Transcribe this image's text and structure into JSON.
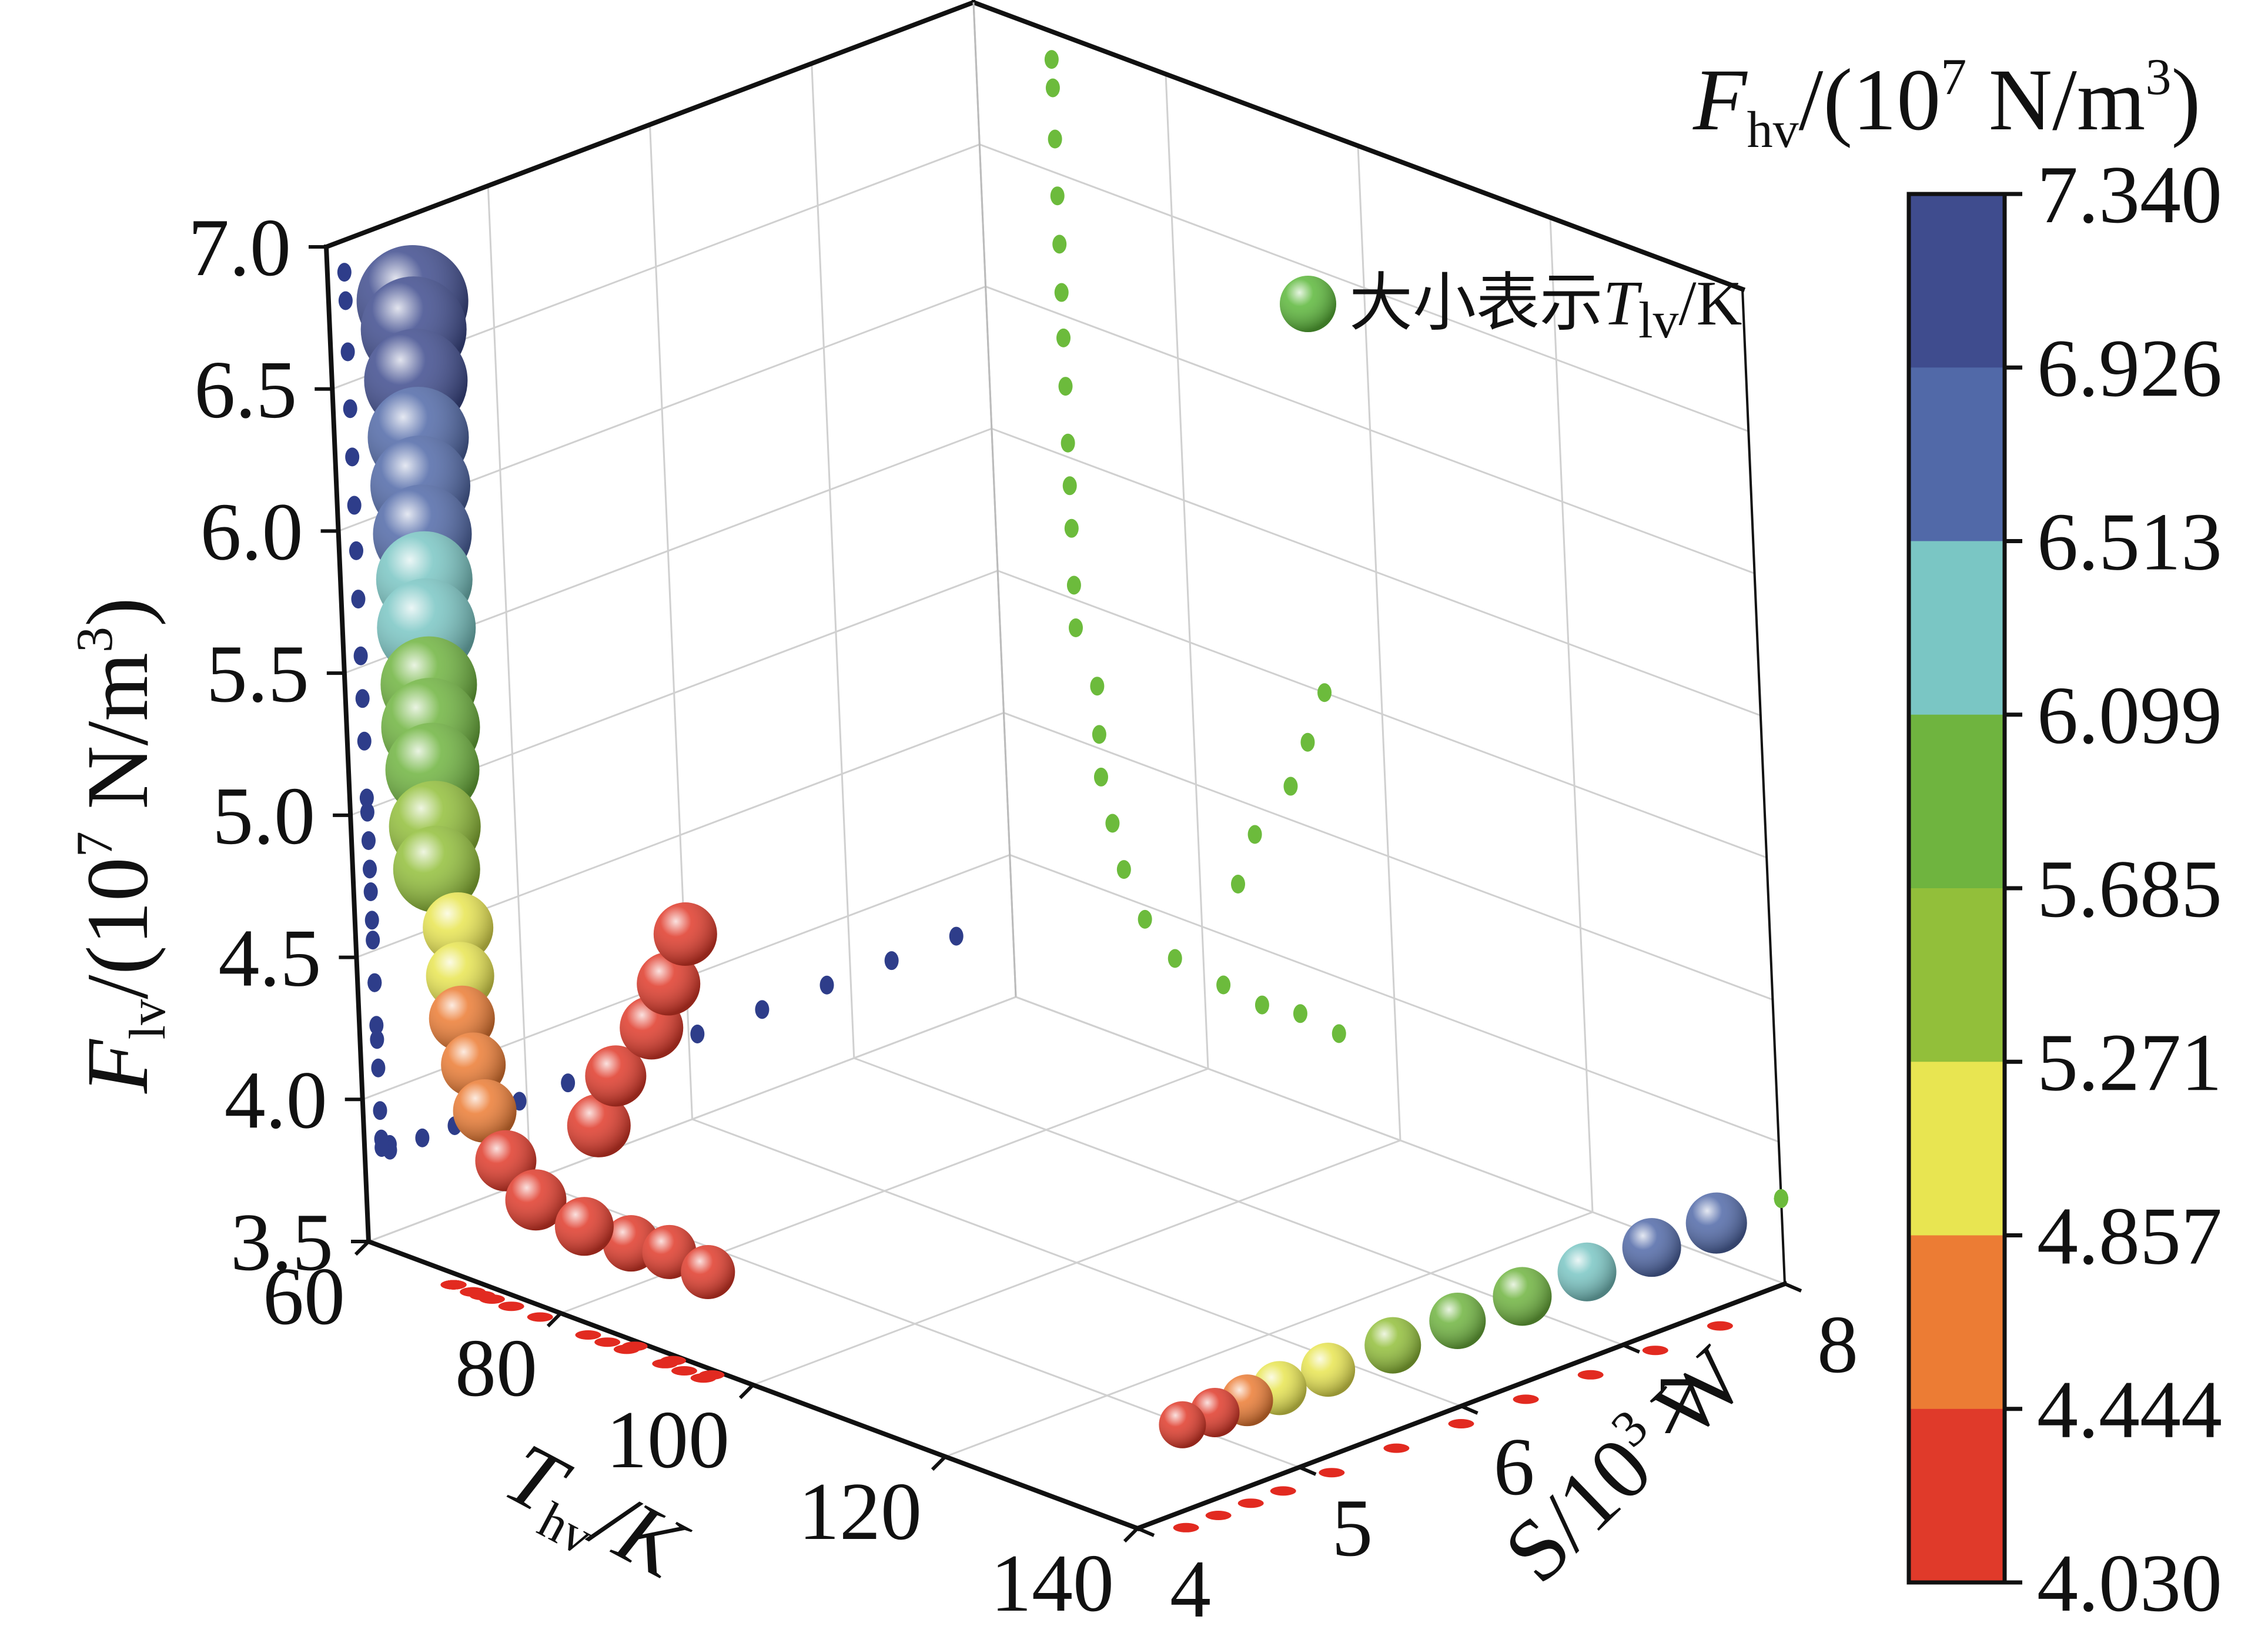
{
  "chart_data": {
    "type": "scatter",
    "dims": "3d",
    "axes": {
      "x": {
        "title_main": "T",
        "title_sub": "hv",
        "title_rest": "/K",
        "range": [
          60,
          140
        ],
        "ticks": [
          "60",
          "80",
          "100",
          "120",
          "140"
        ]
      },
      "y": {
        "title_main": "S/10",
        "title_sup": "3",
        "title_rest": " W",
        "range": [
          4,
          8
        ],
        "ticks": [
          "4",
          "5",
          "6",
          "7",
          "8"
        ]
      },
      "z": {
        "title_main": "F",
        "title_sub": "lv",
        "title_mid": "/(10",
        "title_sup": "7",
        "title_mid2": " N/m",
        "title_sup2": "3",
        "title_rest": ")",
        "range": [
          3.5,
          7.0
        ],
        "ticks": [
          "3.5",
          "4.0",
          "4.5",
          "5.0",
          "5.5",
          "6.0",
          "6.5",
          "7.0"
        ]
      }
    },
    "grid": true,
    "legend": {
      "position": "top-right",
      "text_main": "大小表示",
      "text_T": "T",
      "text_sub": "lv",
      "text_rest": "/K",
      "marker_color": "#5cb83a"
    },
    "colorbar": {
      "title_main": "F",
      "title_sub": "hv",
      "title_mid": "/(10",
      "title_sup": "7",
      "title_mid2": " N/m",
      "title_sup2": "3",
      "title_rest": ")",
      "ticks": [
        "7.340",
        "6.926",
        "6.513",
        "6.099",
        "5.685",
        "5.271",
        "4.857",
        "4.444",
        "4.030"
      ],
      "bands": [
        "#3f4c8e",
        "#5169a8",
        "#7ac6c4",
        "#6fb43f",
        "#92bf3a",
        "#e8e551",
        "#ec7c34",
        "#e03a2a"
      ]
    },
    "series": [
      {
        "role": "points",
        "points": [
          {
            "x": 68,
            "y": 4.05,
            "z": 6.9,
            "c": 7.3,
            "r": 95
          },
          {
            "x": 68,
            "y": 4.05,
            "z": 6.8,
            "c": 7.2,
            "r": 90
          },
          {
            "x": 68,
            "y": 4.05,
            "z": 6.62,
            "c": 7.1,
            "r": 88
          },
          {
            "x": 68,
            "y": 4.05,
            "z": 6.42,
            "c": 6.8,
            "r": 86
          },
          {
            "x": 68,
            "y": 4.05,
            "z": 6.25,
            "c": 6.7,
            "r": 85
          },
          {
            "x": 68,
            "y": 4.05,
            "z": 6.08,
            "c": 6.6,
            "r": 84
          },
          {
            "x": 68,
            "y": 4.05,
            "z": 5.92,
            "c": 6.3,
            "r": 82
          },
          {
            "x": 68,
            "y": 4.05,
            "z": 5.75,
            "c": 6.2,
            "r": 84
          },
          {
            "x": 68,
            "y": 4.05,
            "z": 5.55,
            "c": 5.95,
            "r": 82
          },
          {
            "x": 68,
            "y": 4.05,
            "z": 5.4,
            "c": 5.9,
            "r": 84
          },
          {
            "x": 68,
            "y": 4.05,
            "z": 5.25,
            "c": 5.8,
            "r": 80
          },
          {
            "x": 68,
            "y": 4.05,
            "z": 5.05,
            "c": 5.6,
            "r": 78
          },
          {
            "x": 68,
            "y": 4.05,
            "z": 4.9,
            "c": 5.4,
            "r": 74
          },
          {
            "x": 70,
            "y": 4.05,
            "z": 4.72,
            "c": 5.0,
            "r": 60
          },
          {
            "x": 70,
            "y": 4.05,
            "z": 4.55,
            "c": 4.9,
            "r": 58
          },
          {
            "x": 70,
            "y": 4.05,
            "z": 4.4,
            "c": 4.8,
            "r": 56
          },
          {
            "x": 71,
            "y": 4.05,
            "z": 4.25,
            "c": 4.6,
            "r": 55
          },
          {
            "x": 72,
            "y": 4.05,
            "z": 4.1,
            "c": 4.5,
            "r": 54
          },
          {
            "x": 74,
            "y": 4.05,
            "z": 3.95,
            "c": 4.35,
            "r": 52
          },
          {
            "x": 77,
            "y": 4.05,
            "z": 3.85,
            "c": 4.2,
            "r": 52
          },
          {
            "x": 82,
            "y": 4.05,
            "z": 3.82,
            "c": 4.1,
            "r": 50
          },
          {
            "x": 86,
            "y": 4.1,
            "z": 3.8,
            "c": 4.05,
            "r": 48
          },
          {
            "x": 90,
            "y": 4.1,
            "z": 3.82,
            "c": 4.05,
            "r": 46
          },
          {
            "x": 94,
            "y": 4.1,
            "z": 3.8,
            "c": 4.05,
            "r": 46
          },
          {
            "x": 84,
            "y": 4.05,
            "z": 4.2,
            "c": 4.1,
            "r": 54
          },
          {
            "x": 86,
            "y": 4.05,
            "z": 4.4,
            "c": 4.1,
            "r": 52
          },
          {
            "x": 90,
            "y": 4.05,
            "z": 4.62,
            "c": 4.1,
            "r": 54
          },
          {
            "x": 92,
            "y": 4.05,
            "z": 4.8,
            "c": 4.1,
            "r": 54
          },
          {
            "x": 94,
            "y": 4.05,
            "z": 5.0,
            "c": 4.1,
            "r": 54
          },
          {
            "x": 140,
            "y": 4.3,
            "z": 3.8,
            "c": 4.1,
            "r": 40
          },
          {
            "x": 140,
            "y": 4.5,
            "z": 3.8,
            "c": 4.3,
            "r": 42
          },
          {
            "x": 140,
            "y": 4.7,
            "z": 3.8,
            "c": 4.6,
            "r": 44
          },
          {
            "x": 140,
            "y": 4.9,
            "z": 3.8,
            "c": 4.9,
            "r": 46
          },
          {
            "x": 140,
            "y": 5.2,
            "z": 3.8,
            "c": 5.1,
            "r": 46
          },
          {
            "x": 140,
            "y": 5.6,
            "z": 3.8,
            "c": 5.6,
            "r": 48
          },
          {
            "x": 140,
            "y": 6.0,
            "z": 3.8,
            "c": 5.7,
            "r": 48
          },
          {
            "x": 140,
            "y": 6.4,
            "z": 3.8,
            "c": 6.0,
            "r": 50
          },
          {
            "x": 140,
            "y": 6.8,
            "z": 3.8,
            "c": 6.3,
            "r": 50
          },
          {
            "x": 140,
            "y": 7.2,
            "z": 3.8,
            "c": 6.6,
            "r": 50
          },
          {
            "x": 140,
            "y": 7.6,
            "z": 3.8,
            "c": 6.8,
            "r": 52
          }
        ]
      }
    ]
  }
}
